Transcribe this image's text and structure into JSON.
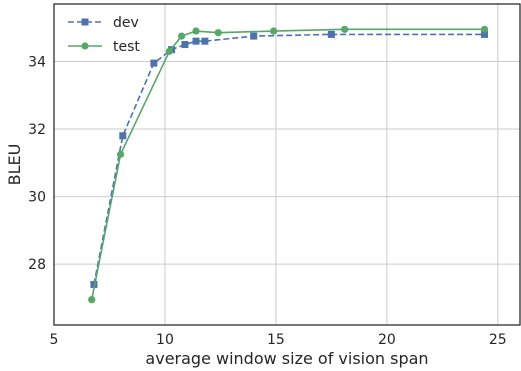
{
  "chart_data": {
    "type": "line",
    "title": "",
    "xlabel": "average window size of vision span",
    "ylabel": "BLEU",
    "xlim": [
      5,
      26
    ],
    "ylim": [
      26.2,
      35.7
    ],
    "xticks": [
      5,
      10,
      15,
      20,
      25
    ],
    "yticks": [
      28,
      30,
      32,
      34
    ],
    "grid": true,
    "legend_position": "top-left",
    "series": [
      {
        "name": "dev",
        "color": "#4c72b0",
        "linestyle": "dashed",
        "marker": "square",
        "x": [
          6.8,
          8.1,
          9.5,
          10.3,
          10.9,
          11.4,
          11.8,
          14.0,
          17.5,
          24.4
        ],
        "y": [
          27.4,
          31.8,
          33.95,
          34.35,
          34.5,
          34.6,
          34.6,
          34.75,
          34.8,
          34.8
        ]
      },
      {
        "name": "test",
        "color": "#55a868",
        "linestyle": "solid",
        "marker": "circle",
        "x": [
          6.7,
          8.0,
          10.2,
          10.75,
          11.4,
          12.4,
          14.9,
          18.1,
          24.4
        ],
        "y": [
          26.95,
          31.25,
          34.3,
          34.75,
          34.9,
          34.85,
          34.9,
          34.95,
          34.95
        ]
      }
    ]
  }
}
